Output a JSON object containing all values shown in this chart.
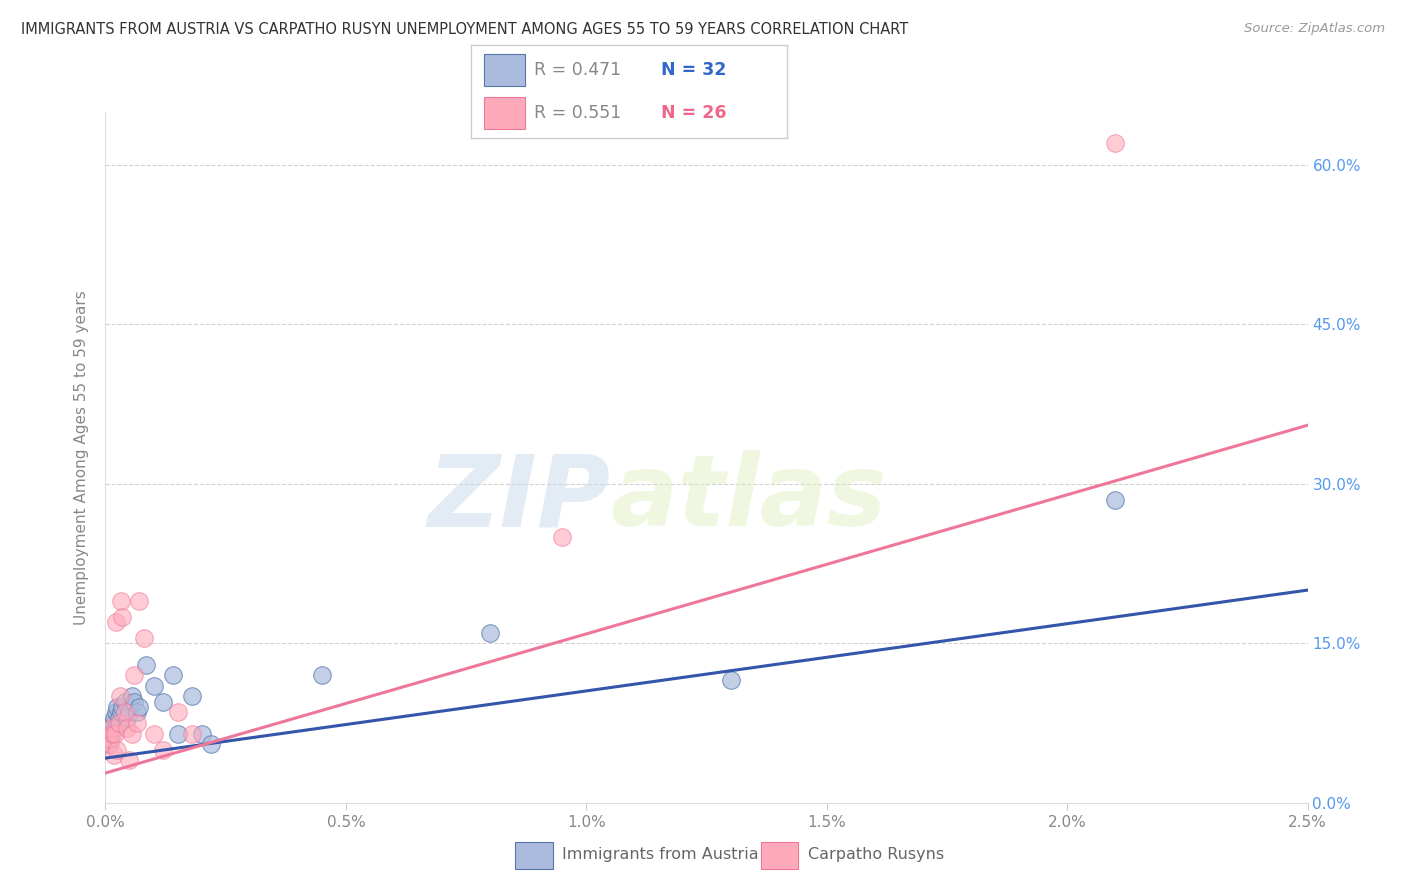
{
  "title": "IMMIGRANTS FROM AUSTRIA VS CARPATHO RUSYN UNEMPLOYMENT AMONG AGES 55 TO 59 YEARS CORRELATION CHART",
  "source": "Source: ZipAtlas.com",
  "ylabel": "Unemployment Among Ages 55 to 59 years",
  "legend_labels": [
    "Immigrants from Austria",
    "Carpatho Rusyns"
  ],
  "legend_r": [
    "R = 0.471",
    "R = 0.551"
  ],
  "legend_n": [
    "N = 32",
    "N = 26"
  ],
  "blue_face": "#AABBDD",
  "blue_edge": "#5577AA",
  "blue_line": "#3355AA",
  "pink_face": "#FFAABB",
  "pink_edge": "#EE7799",
  "pink_line": "#EE7799",
  "xmin": 0.0,
  "xmax": 0.025,
  "ymin": 0.0,
  "ymax": 0.65,
  "yticks": [
    0.0,
    0.15,
    0.3,
    0.45,
    0.6
  ],
  "ytick_labels_right": [
    "0.0%",
    "15.0%",
    "30.0%",
    "45.0%",
    "60.0%"
  ],
  "xticks": [
    0.0,
    0.005,
    0.01,
    0.015,
    0.02,
    0.025
  ],
  "xtick_labels": [
    "0.0%",
    "0.5%",
    "1.0%",
    "1.5%",
    "2.0%",
    "2.5%"
  ],
  "blue_scatter_x": [
    5e-05,
    8e-05,
    0.0001,
    0.00012,
    0.00015,
    0.00018,
    0.0002,
    0.00022,
    0.00025,
    0.00028,
    0.0003,
    0.00032,
    0.00035,
    0.0004,
    0.00045,
    0.0005,
    0.00055,
    0.0006,
    0.00065,
    0.0007,
    0.00085,
    0.001,
    0.0012,
    0.0014,
    0.0015,
    0.0018,
    0.002,
    0.0022,
    0.0045,
    0.008,
    0.013,
    0.021
  ],
  "blue_scatter_y": [
    0.055,
    0.065,
    0.06,
    0.07,
    0.075,
    0.08,
    0.07,
    0.085,
    0.09,
    0.08,
    0.075,
    0.085,
    0.09,
    0.095,
    0.08,
    0.085,
    0.1,
    0.095,
    0.085,
    0.09,
    0.13,
    0.11,
    0.095,
    0.12,
    0.065,
    0.1,
    0.065,
    0.055,
    0.12,
    0.16,
    0.115,
    0.285
  ],
  "pink_scatter_x": [
    5e-05,
    0.0001,
    0.00012,
    0.00015,
    0.00018,
    0.0002,
    0.00022,
    0.00025,
    0.00028,
    0.0003,
    0.00032,
    0.00035,
    0.0004,
    0.00045,
    0.0005,
    0.00055,
    0.0006,
    0.00065,
    0.0007,
    0.0008,
    0.001,
    0.0012,
    0.0015,
    0.0018,
    0.0095,
    0.021
  ],
  "pink_scatter_y": [
    0.06,
    0.055,
    0.07,
    0.065,
    0.045,
    0.065,
    0.17,
    0.05,
    0.075,
    0.1,
    0.19,
    0.175,
    0.085,
    0.07,
    0.04,
    0.065,
    0.12,
    0.075,
    0.19,
    0.155,
    0.065,
    0.05,
    0.085,
    0.065,
    0.25,
    0.62
  ],
  "blue_trend_x0": 0.0,
  "blue_trend_x1": 0.025,
  "blue_trend_y0": 0.042,
  "blue_trend_y1": 0.2,
  "pink_trend_x0": 0.0,
  "pink_trend_x1": 0.025,
  "pink_trend_y0": 0.028,
  "pink_trend_y1": 0.355,
  "watermark_zip": "ZIP",
  "watermark_atlas": "atlas",
  "bg": "#FFFFFF",
  "grid_color": "#CCCCCC",
  "title_color": "#333333",
  "source_color": "#999999",
  "ylabel_color": "#888888",
  "right_tick_color": "#5599EE",
  "legend_r_color": "#888888",
  "legend_n_blue_color": "#3366CC",
  "legend_n_pink_color": "#EE6688"
}
